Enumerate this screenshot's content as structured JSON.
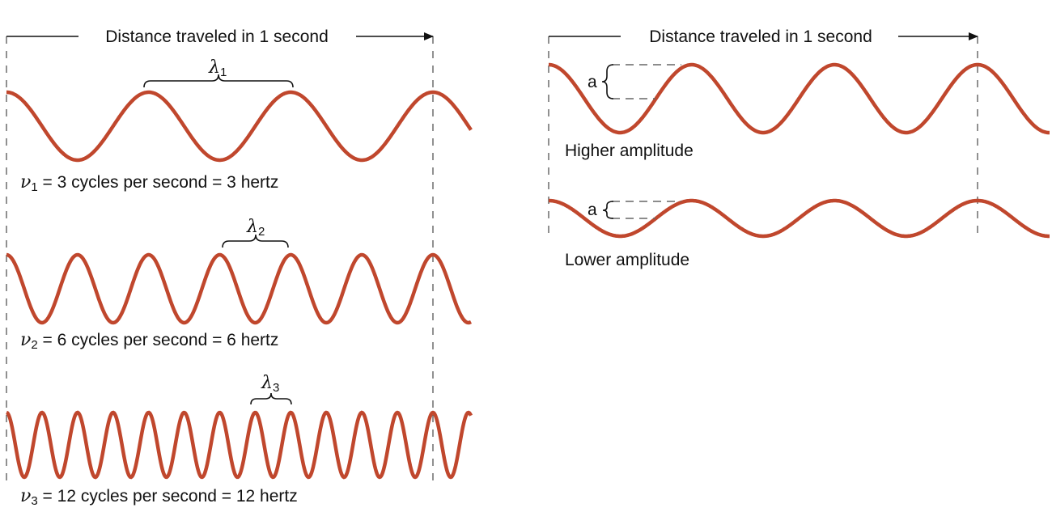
{
  "left_panel": {
    "distance_label": "Distance traveled in 1 second",
    "waves": [
      {
        "lambda_symbol": "λ",
        "lambda_sub": "1",
        "nu_symbol": "ν",
        "nu_sub": "1",
        "equation": " = 3 cycles per second = 3 hertz",
        "cycles_per_second": 3
      },
      {
        "lambda_symbol": "λ",
        "lambda_sub": "2",
        "nu_symbol": "ν",
        "nu_sub": "2",
        "equation": " = 6 cycles per second = 6 hertz",
        "cycles_per_second": 6
      },
      {
        "lambda_symbol": "λ",
        "lambda_sub": "3",
        "nu_symbol": "ν",
        "nu_sub": "3",
        "equation": " = 12 cycles per second = 12 hertz",
        "cycles_per_second": 12
      }
    ]
  },
  "right_panel": {
    "distance_label": "Distance traveled in 1 second",
    "waves": [
      {
        "amplitude_label": "a",
        "caption": "Higher amplitude",
        "cycles_per_second": 3
      },
      {
        "amplitude_label": "a",
        "caption": "Lower amplitude",
        "cycles_per_second": 3
      }
    ]
  },
  "colors": {
    "wave": "#c0472d",
    "text": "#111111"
  }
}
